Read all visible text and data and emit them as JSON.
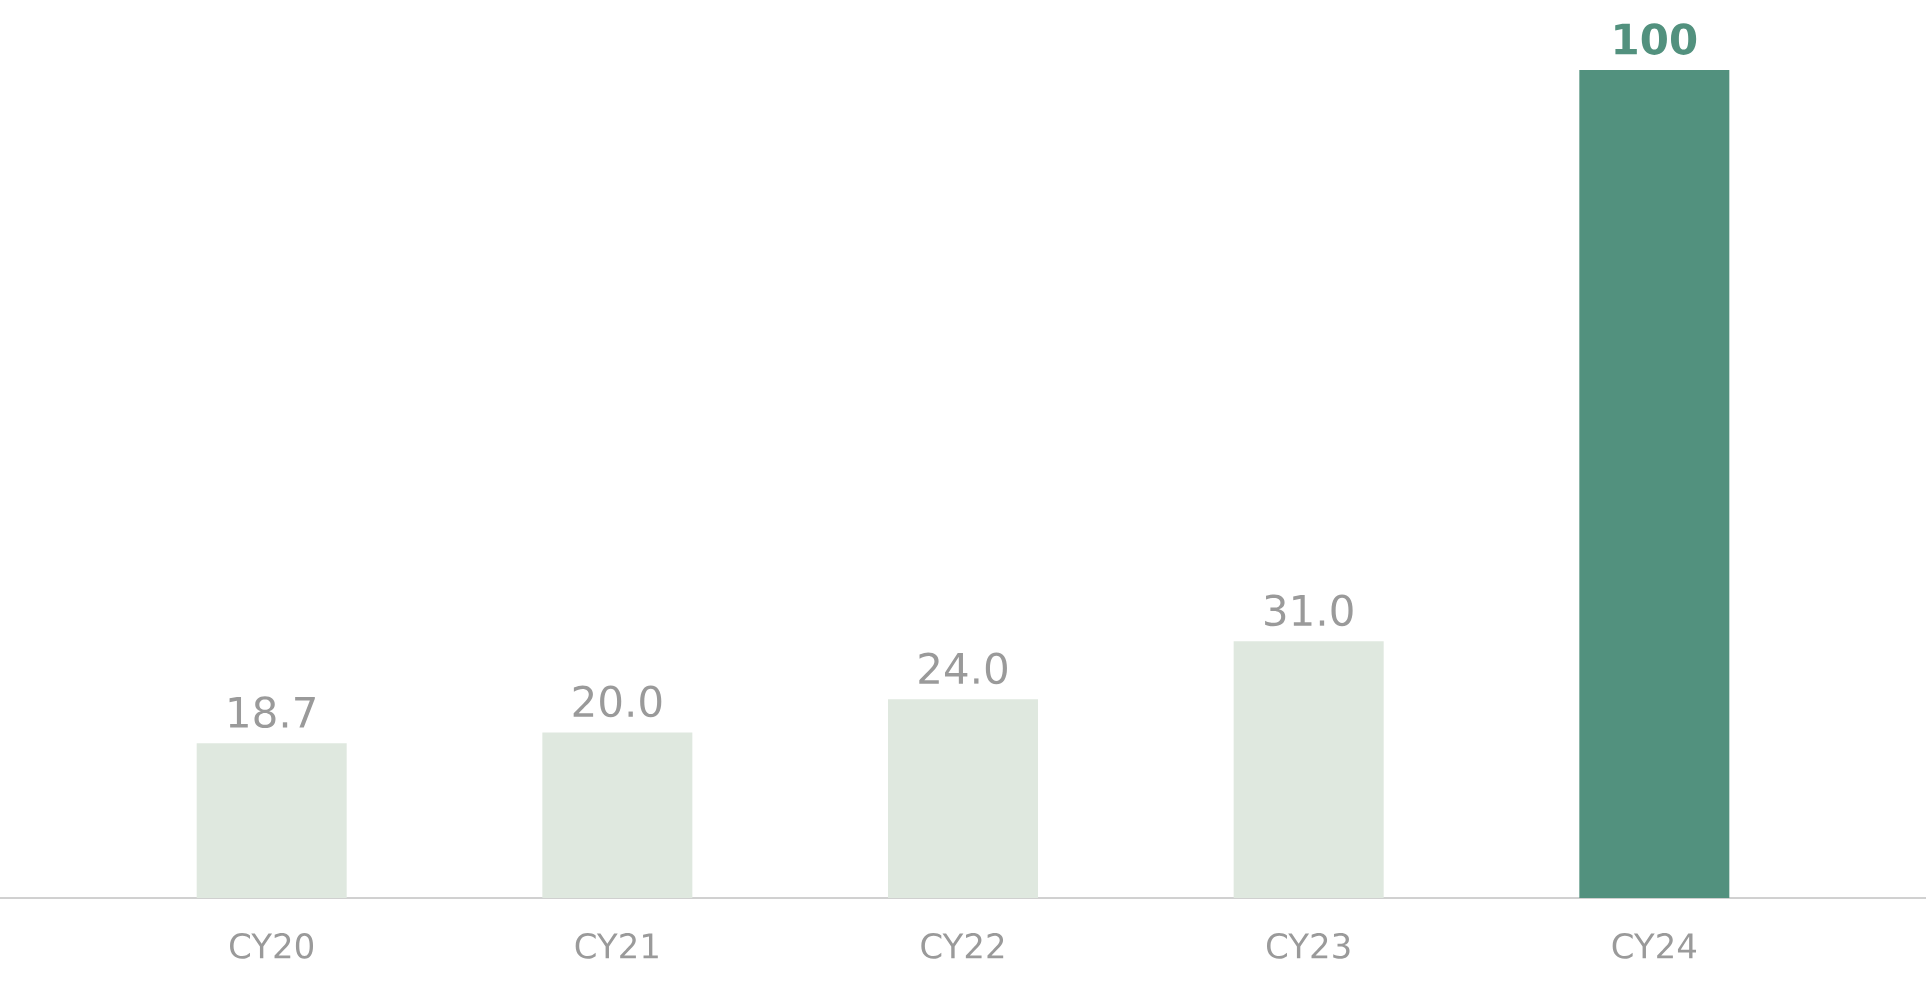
{
  "chart_data": {
    "type": "bar",
    "categories": [
      "CY20",
      "CY21",
      "CY22",
      "CY23",
      "CY24"
    ],
    "values": [
      18.7,
      20.0,
      24.0,
      31.0,
      100
    ],
    "colors": [
      "#dfe8df",
      "#dfe8df",
      "#dfe8df",
      "#dfe8df",
      "#52917e"
    ],
    "value_labels": [
      "18.7",
      "20.0",
      "24.0",
      "31.0",
      "**100**"
    ],
    "ylim": [
      0,
      100
    ],
    "tick_labels": "x",
    "grid": false
  }
}
